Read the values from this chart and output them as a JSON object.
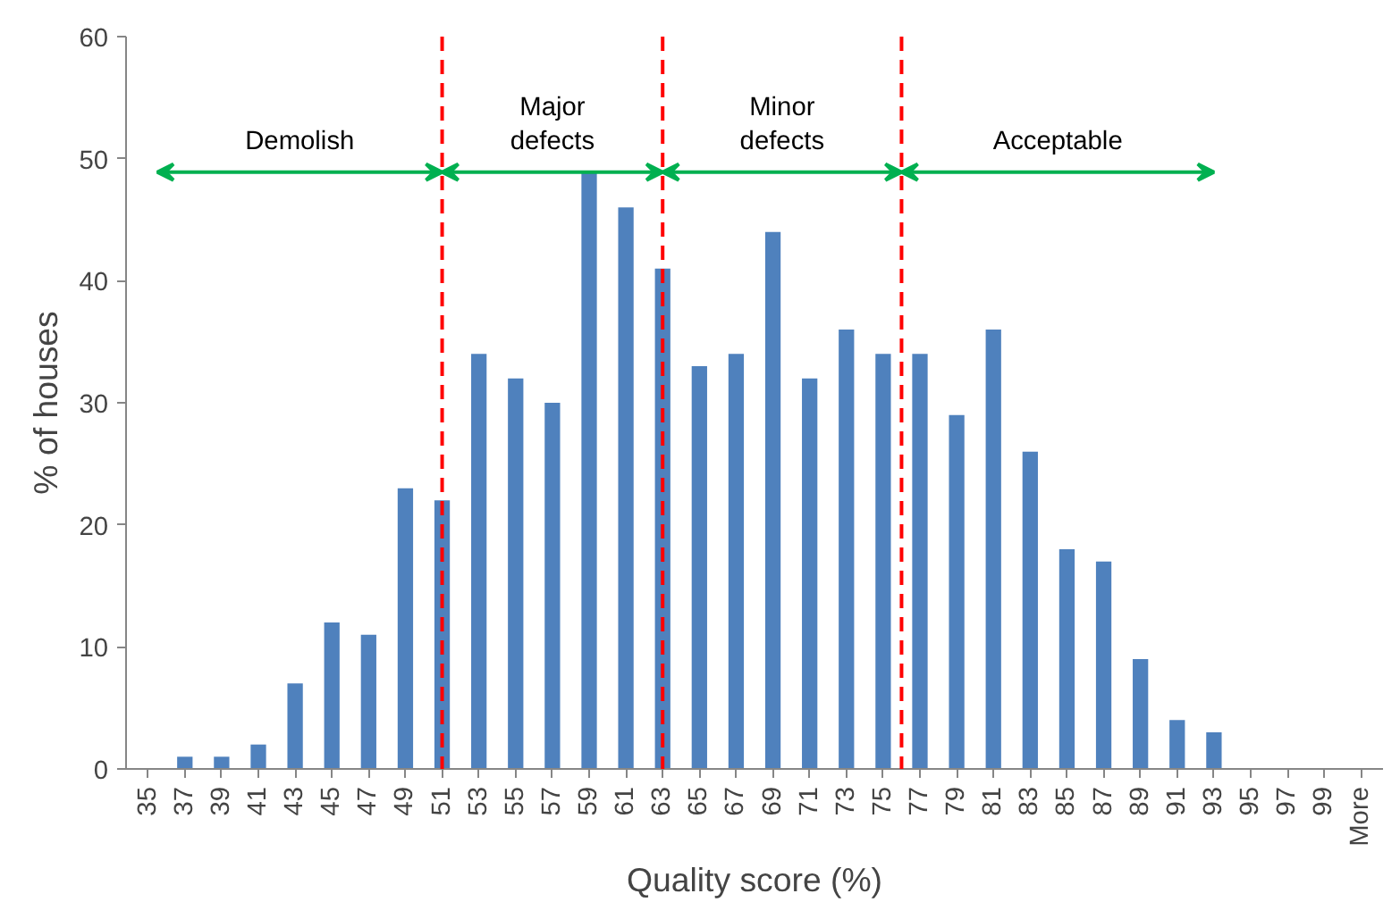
{
  "chart_data": {
    "type": "bar",
    "xlabel": "Quality score (%)",
    "ylabel": "% of houses",
    "categories": [
      "35",
      "37",
      "39",
      "41",
      "43",
      "45",
      "47",
      "49",
      "51",
      "53",
      "55",
      "57",
      "59",
      "61",
      "63",
      "65",
      "67",
      "69",
      "71",
      "73",
      "75",
      "77",
      "79",
      "81",
      "83",
      "85",
      "87",
      "89",
      "91",
      "93",
      "95",
      "97",
      "99",
      "More"
    ],
    "values": [
      0,
      1,
      1,
      2,
      7,
      12,
      11,
      23,
      22,
      34,
      32,
      30,
      49,
      46,
      41,
      33,
      34,
      44,
      32,
      36,
      34,
      34,
      29,
      36,
      26,
      18,
      17,
      9,
      4,
      3,
      0,
      0,
      0,
      0
    ],
    "color": "#4f81bd",
    "ylim": [
      0,
      60
    ],
    "yticks": [
      0,
      10,
      20,
      30,
      40,
      50,
      60
    ],
    "ref_lines": [
      {
        "axis": "x",
        "value": "51",
        "label": null,
        "color": "#ff0000",
        "line_style": "dashed"
      },
      {
        "axis": "x",
        "value": "63",
        "label": null,
        "color": "#ff0000",
        "line_style": "dashed"
      }
    ],
    "annotations": [
      "Demolish",
      "Major\ndefects",
      "Minor\ndefects",
      "Acceptable"
    ]
  }
}
